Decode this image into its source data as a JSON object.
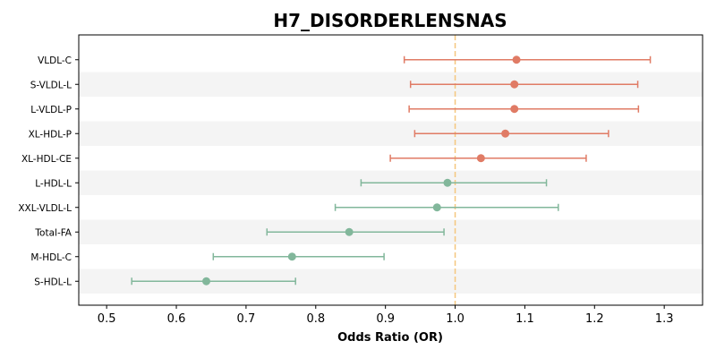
{
  "chart_data": {
    "type": "forest",
    "title": "H7_DISORDERLENSNAS",
    "xlabel": "Odds Ratio (OR)",
    "xlim": [
      0.46,
      1.355
    ],
    "xticks": [
      0.5,
      0.6,
      0.7,
      0.8,
      0.9,
      1.0,
      1.1,
      1.2,
      1.3
    ],
    "xtick_labels": [
      "0.5",
      "0.6",
      "0.7",
      "0.8",
      "0.9",
      "1.0",
      "1.1",
      "1.2",
      "1.3"
    ],
    "reference_line": 1.0,
    "colors": {
      "increased": "#e07b65",
      "decreased": "#82b79b",
      "reference": "#f5c77e",
      "stripe": "#f4f4f4"
    },
    "rows": [
      {
        "label": "VLDL-C",
        "or": 1.088,
        "lo": 0.927,
        "hi": 1.28
      },
      {
        "label": "S-VLDL-L",
        "or": 1.085,
        "lo": 0.936,
        "hi": 1.262
      },
      {
        "label": "L-VLDL-P",
        "or": 1.085,
        "lo": 0.934,
        "hi": 1.263
      },
      {
        "label": "XL-HDL-P",
        "or": 1.072,
        "lo": 0.942,
        "hi": 1.22
      },
      {
        "label": "XL-HDL-CE",
        "or": 1.037,
        "lo": 0.907,
        "hi": 1.188
      },
      {
        "label": "L-HDL-L",
        "or": 0.989,
        "lo": 0.865,
        "hi": 1.131
      },
      {
        "label": "XXL-VLDL-L",
        "or": 0.974,
        "lo": 0.828,
        "hi": 1.148
      },
      {
        "label": "Total-FA",
        "or": 0.848,
        "lo": 0.73,
        "hi": 0.984
      },
      {
        "label": "M-HDL-C",
        "or": 0.766,
        "lo": 0.653,
        "hi": 0.898
      },
      {
        "label": "S-HDL-L",
        "or": 0.643,
        "lo": 0.536,
        "hi": 0.771
      }
    ]
  }
}
